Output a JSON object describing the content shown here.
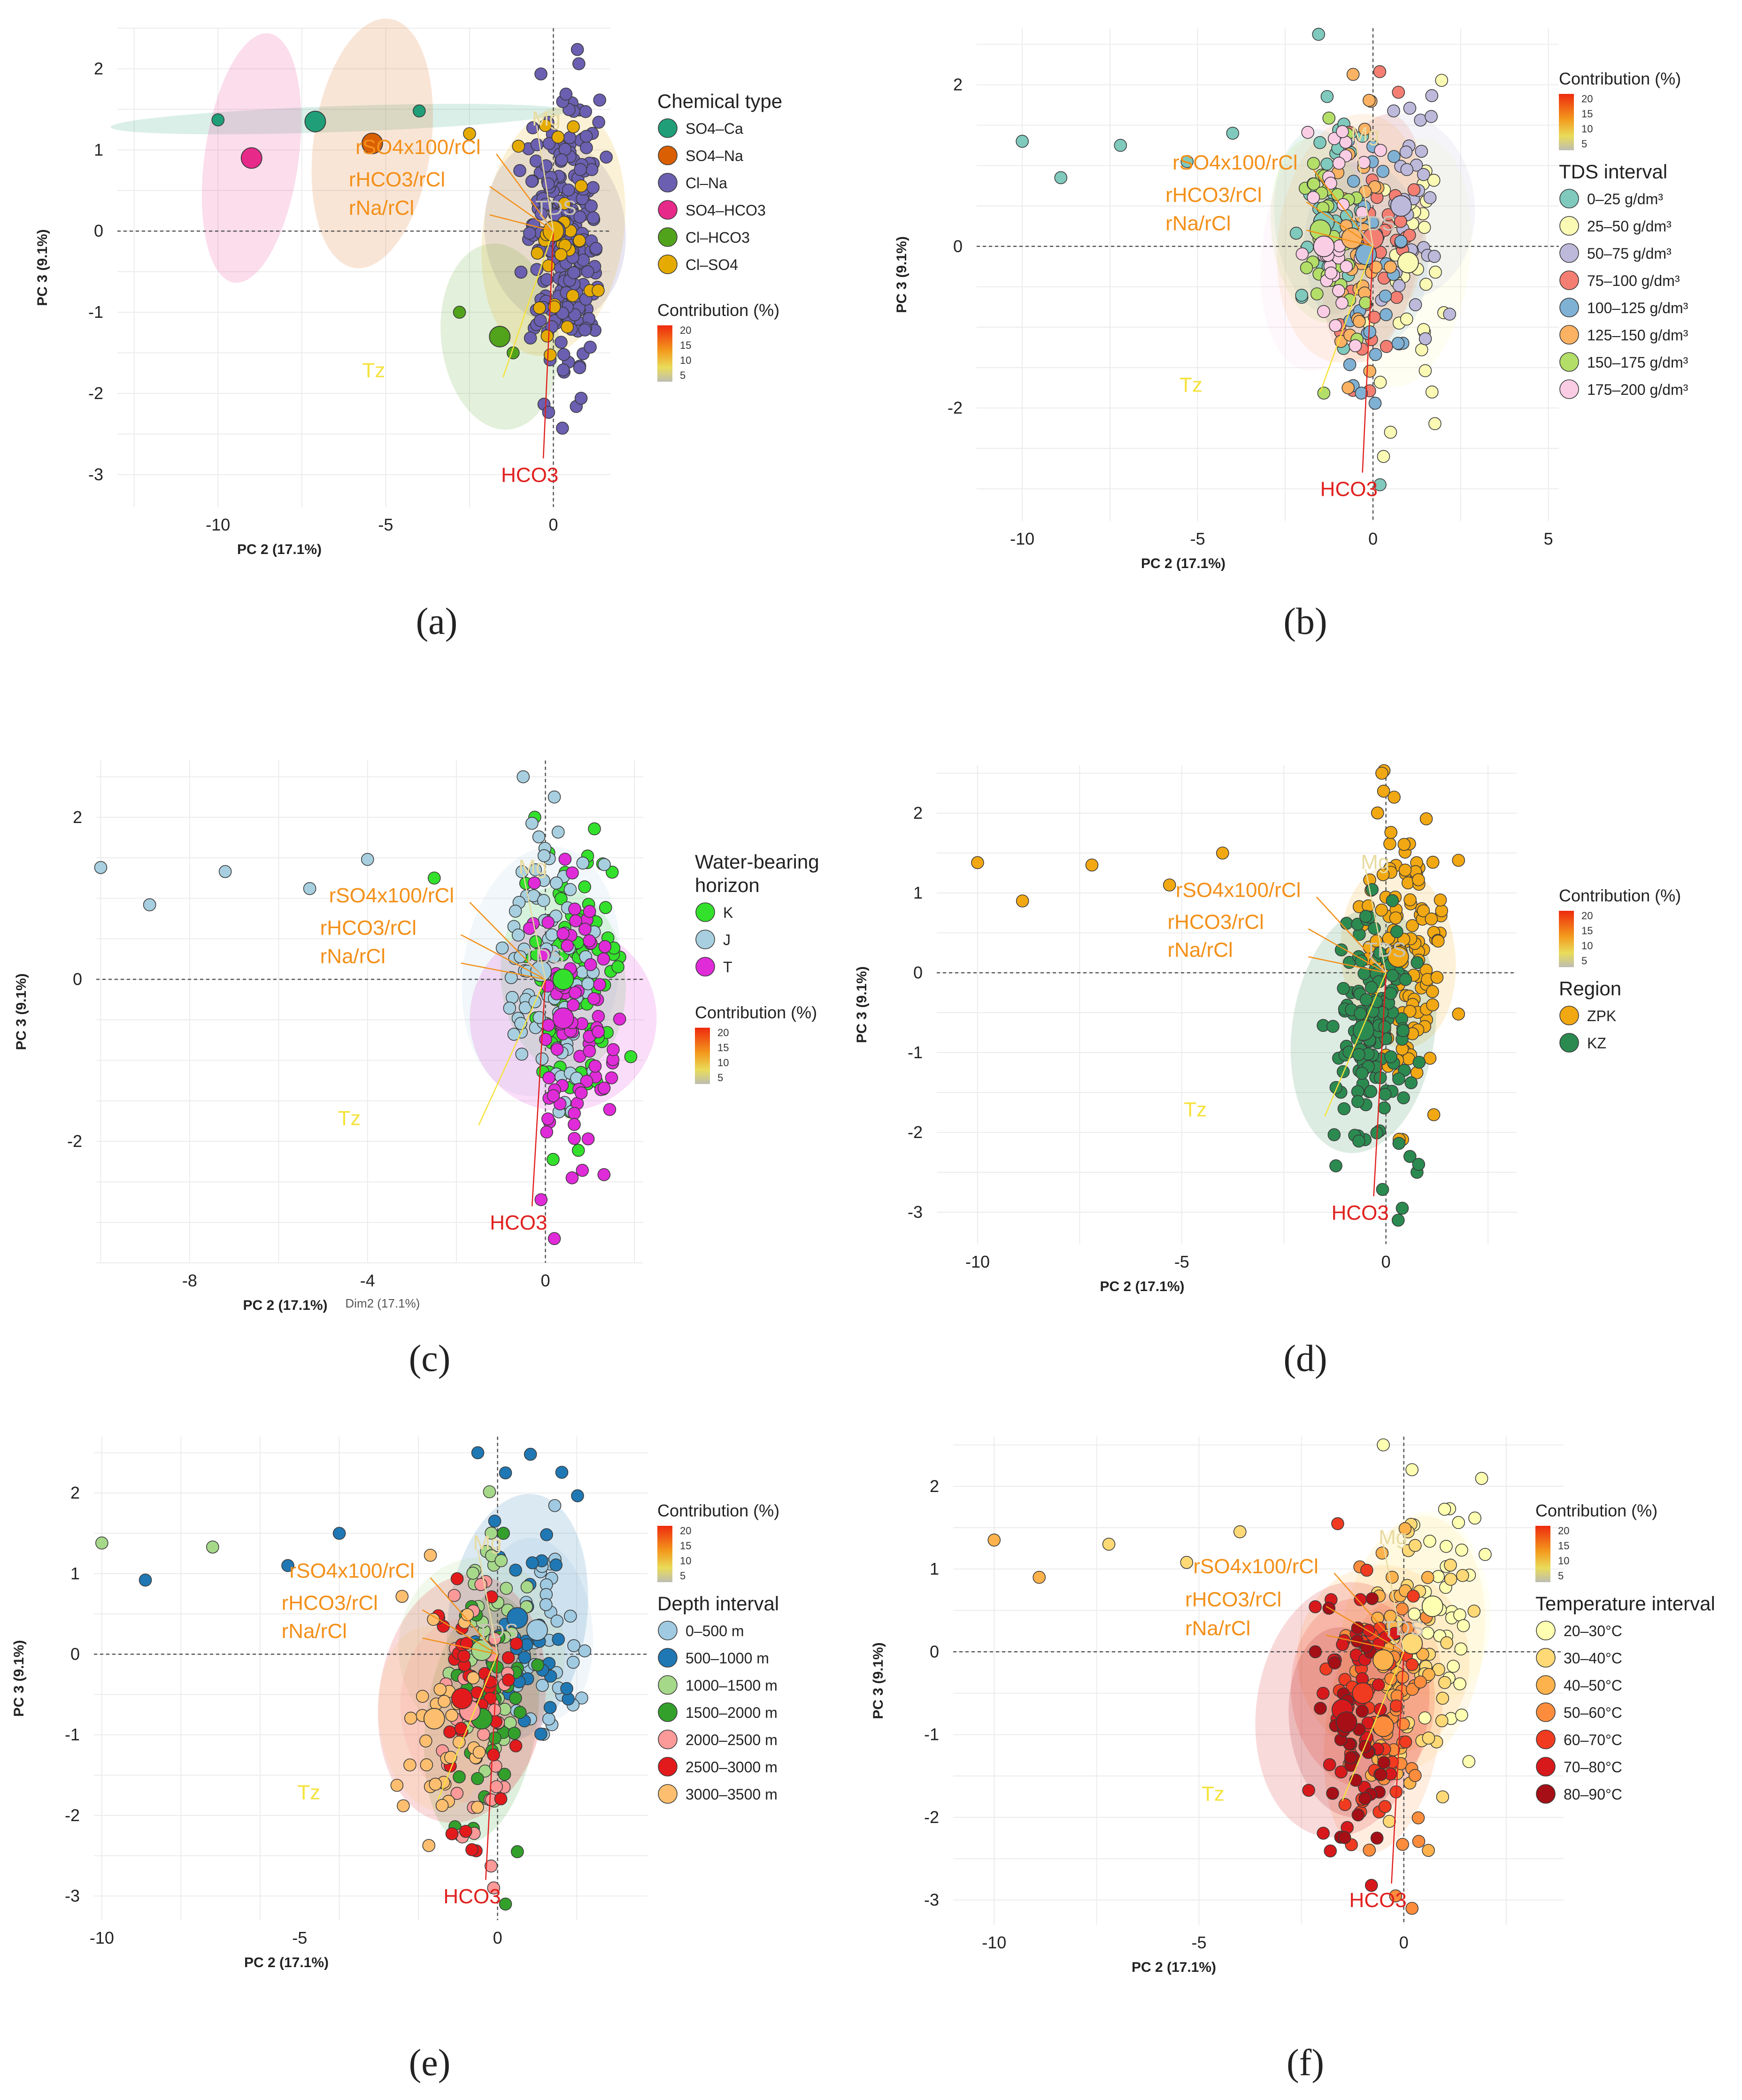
{
  "figure": {
    "axis_labels": {
      "x": "PC 2 (17.1%)",
      "y": "PC 3 (9.1%)",
      "c_dim": "Dim2 (17.1%)"
    },
    "contribution": {
      "title": "Contribution (%)",
      "ticks": [
        "20",
        "15",
        "10",
        "5"
      ]
    },
    "vector_labels": {
      "rSO4": "rSO4x100/rCl",
      "rHCO3": "rHCO3/rCl",
      "rNa": "rNa/rCl",
      "tds": "TDS",
      "hco3": "HCO3",
      "tz": "Tz",
      "mg": "Mg"
    }
  },
  "chart_data": [
    {
      "type": "scatter",
      "panel": "(a)",
      "xlabel": "PC 2 (17.1%)",
      "ylabel": "PC 3 (9.1%)",
      "xlim": [
        -13,
        1.7
      ],
      "ylim": [
        -3.4,
        2.5
      ],
      "xticks": [
        "-10",
        "-5",
        "0"
      ],
      "yticks": [
        "-3",
        "-2",
        "-1",
        "0",
        "1",
        "2"
      ],
      "legend_title": "Chemical type",
      "categories": [
        "SO4–Ca",
        "SO4–Na",
        "Cl–Na",
        "SO4–HCO3",
        "Cl–HCO3",
        "Cl–SO4"
      ],
      "colors": [
        "#1f9e77",
        "#d95f02",
        "#6a5fb0",
        "#e7298a",
        "#52a31c",
        "#e6ab02"
      ],
      "centroids": [
        [
          -7.1,
          1.35
        ],
        [
          -5.4,
          1.08
        ],
        [
          0.05,
          0.0
        ],
        [
          -9.0,
          0.9
        ],
        [
          -1.6,
          -1.3
        ],
        [
          0.0,
          0.0
        ]
      ],
      "outliers": [
        [
          -10.0,
          1.37,
          0
        ],
        [
          -4.0,
          1.48,
          0
        ],
        [
          -2.5,
          1.2,
          5
        ],
        [
          -1.2,
          -1.5,
          4
        ],
        [
          -2.8,
          -1.0,
          4
        ]
      ]
    },
    {
      "type": "scatter",
      "panel": "(b)",
      "xlabel": "PC 2 (17.1%)",
      "ylabel": "PC 3 (9.1%)",
      "xlim": [
        -11.3,
        5.3
      ],
      "ylim": [
        -3.4,
        2.7
      ],
      "xticks": [
        "-10",
        "-5",
        "0",
        "5"
      ],
      "yticks": [
        "-2",
        "0",
        "2"
      ],
      "legend_title": "TDS interval",
      "categories": [
        "0–25 g/dm³",
        "25–50 g/dm³",
        "50–75 g/dm³",
        "75–100 g/dm³",
        "100–125 g/dm³",
        "125–150 g/dm³",
        "150–175 g/dm³",
        "175–200 g/dm³"
      ],
      "colors": [
        "#7fc9bd",
        "#fbfab4",
        "#bdb9db",
        "#f47e72",
        "#7fb1d4",
        "#fbb262",
        "#b3de68",
        "#fbcde5"
      ],
      "centroids": [
        [
          -1.4,
          0.3
        ],
        [
          1.0,
          -0.2
        ],
        [
          0.8,
          0.5
        ],
        [
          0.0,
          0.1
        ],
        [
          -0.2,
          -0.1
        ],
        [
          -0.6,
          0.1
        ],
        [
          -1.5,
          0.2
        ],
        [
          -1.4,
          0.0
        ]
      ],
      "outliers": [
        [
          -10.0,
          1.3,
          0
        ],
        [
          -8.9,
          0.85,
          0
        ],
        [
          -7.2,
          1.25,
          0
        ],
        [
          -5.3,
          1.05,
          0
        ],
        [
          -4.0,
          1.4,
          0
        ],
        [
          0.5,
          -2.3,
          1
        ],
        [
          0.3,
          -2.6,
          1
        ],
        [
          0.2,
          -2.95,
          0
        ]
      ]
    },
    {
      "type": "scatter",
      "panel": "(c)",
      "xlabel": "PC 2 (17.1%)",
      "ylabel": "PC 3 (9.1%)",
      "xlim": [
        -10.1,
        2.2
      ],
      "ylim": [
        -3.5,
        2.7
      ],
      "xticks": [
        "-8",
        "-4",
        "0"
      ],
      "yticks": [
        "-2",
        "0",
        "2"
      ],
      "legend_title": "Water-bearing horizon",
      "categories": [
        "K",
        "J",
        "T"
      ],
      "colors": [
        "#33e02b",
        "#a7cfdf",
        "#e02bd8"
      ],
      "centroids": [
        [
          0.4,
          0.0
        ],
        [
          -0.1,
          0.1
        ],
        [
          0.4,
          -0.48
        ]
      ],
      "outliers": [
        [
          -10.0,
          1.38,
          1
        ],
        [
          -8.9,
          0.92,
          1
        ],
        [
          -7.2,
          1.33,
          1
        ],
        [
          -5.3,
          1.12,
          1
        ],
        [
          -4.0,
          1.48,
          1
        ],
        [
          -2.5,
          1.25,
          0
        ],
        [
          0.2,
          2.25,
          1
        ],
        [
          -0.5,
          2.5,
          1
        ],
        [
          0.6,
          -2.45,
          2
        ],
        [
          0.2,
          -3.2,
          2
        ]
      ]
    },
    {
      "type": "scatter",
      "panel": "(d)",
      "xlabel": "PC 2 (17.1%)",
      "ylabel": "PC 3 (9.1%)",
      "xlim": [
        -11,
        3.2
      ],
      "ylim": [
        -3.4,
        2.6
      ],
      "xticks": [
        "-10",
        "-5",
        "0"
      ],
      "yticks": [
        "-3",
        "-2",
        "-1",
        "0",
        "1",
        "2"
      ],
      "legend_title": "Region",
      "categories": [
        "ZPK",
        "KZ"
      ],
      "colors": [
        "#f2a812",
        "#2b8a50"
      ],
      "centroids": [
        [
          0.3,
          0.2
        ],
        [
          -0.55,
          -0.72
        ]
      ],
      "outliers": [
        [
          -10.0,
          1.38,
          0
        ],
        [
          -8.9,
          0.9,
          0
        ],
        [
          -7.2,
          1.35,
          0
        ],
        [
          -5.3,
          1.1,
          0
        ],
        [
          -4.0,
          1.5,
          0
        ],
        [
          0.2,
          2.2,
          0
        ],
        [
          -0.1,
          2.5,
          0
        ],
        [
          0.8,
          -2.4,
          1
        ],
        [
          0.3,
          -3.1,
          1
        ],
        [
          0.4,
          -2.95,
          1
        ]
      ]
    },
    {
      "type": "scatter",
      "panel": "(e)",
      "xlabel": "PC 2 (17.1%)",
      "ylabel": "PC 3 (9.1%)",
      "xlim": [
        -10.2,
        3.8
      ],
      "ylim": [
        -3.3,
        2.7
      ],
      "xticks": [
        "-10",
        "-5",
        "0"
      ],
      "yticks": [
        "-3",
        "-2",
        "-1",
        "0",
        "1",
        "2"
      ],
      "legend_title": "Depth interval",
      "categories": [
        "0–500 m",
        "500–1000 m",
        "1000–1500 m",
        "1500–2000 m",
        "2000–2500 m",
        "2500–3000 m",
        "3000–3500 m"
      ],
      "colors": [
        "#9fcae1",
        "#1f78b4",
        "#a6d88a",
        "#33a02c",
        "#fb9a99",
        "#e31a1c",
        "#fdbf6f"
      ],
      "centroids": [
        [
          1.0,
          0.3
        ],
        [
          0.5,
          0.45
        ],
        [
          -0.4,
          0.05
        ],
        [
          -0.4,
          -0.8
        ],
        [
          -0.7,
          -0.7
        ],
        [
          -0.9,
          -0.55
        ],
        [
          -1.6,
          -0.8
        ]
      ],
      "outliers": [
        [
          -10.0,
          1.38,
          2
        ],
        [
          -8.9,
          0.92,
          1
        ],
        [
          -7.2,
          1.33,
          2
        ],
        [
          -5.3,
          1.1,
          1
        ],
        [
          -4.0,
          1.5,
          1
        ],
        [
          -0.5,
          2.5,
          1
        ],
        [
          0.2,
          2.25,
          1
        ],
        [
          0.5,
          -2.45,
          3
        ],
        [
          0.2,
          -3.1,
          3
        ],
        [
          -0.1,
          -2.9,
          4
        ]
      ]
    },
    {
      "type": "scatter",
      "panel": "(f)",
      "xlabel": "PC 2 (17.1%)",
      "ylabel": "PC 3 (9.1%)",
      "xlim": [
        -11,
        3.9
      ],
      "ylim": [
        -3.3,
        2.6
      ],
      "xticks": [
        "-10",
        "-5",
        "0"
      ],
      "yticks": [
        "-3",
        "-2",
        "-1",
        "0",
        "1",
        "2"
      ],
      "legend_title": "Temperature interval",
      "categories": [
        "20–30°C",
        "30–40°C",
        "40–50°C",
        "50–60°C",
        "60–70°C",
        "70–80°C",
        "80–90°C"
      ],
      "colors": [
        "#ffffb2",
        "#fed976",
        "#feb24c",
        "#fd8d3c",
        "#f03b20",
        "#d7191c",
        "#a50f15"
      ],
      "centroids": [
        [
          0.7,
          0.55
        ],
        [
          0.2,
          0.1
        ],
        [
          -0.5,
          -0.1
        ],
        [
          -0.5,
          -0.9
        ],
        [
          -1.0,
          -0.5
        ],
        [
          -1.5,
          -0.7
        ],
        [
          -1.4,
          -0.85
        ]
      ],
      "outliers": [
        [
          -10.0,
          1.35,
          2
        ],
        [
          -8.9,
          0.9,
          2
        ],
        [
          -7.2,
          1.3,
          1
        ],
        [
          -5.3,
          1.08,
          1
        ],
        [
          -4.0,
          1.45,
          1
        ],
        [
          -0.5,
          2.5,
          0
        ],
        [
          0.2,
          2.2,
          0
        ],
        [
          0.6,
          -2.4,
          2
        ],
        [
          0.2,
          -3.1,
          3
        ],
        [
          -0.2,
          -2.95,
          3
        ]
      ]
    }
  ]
}
